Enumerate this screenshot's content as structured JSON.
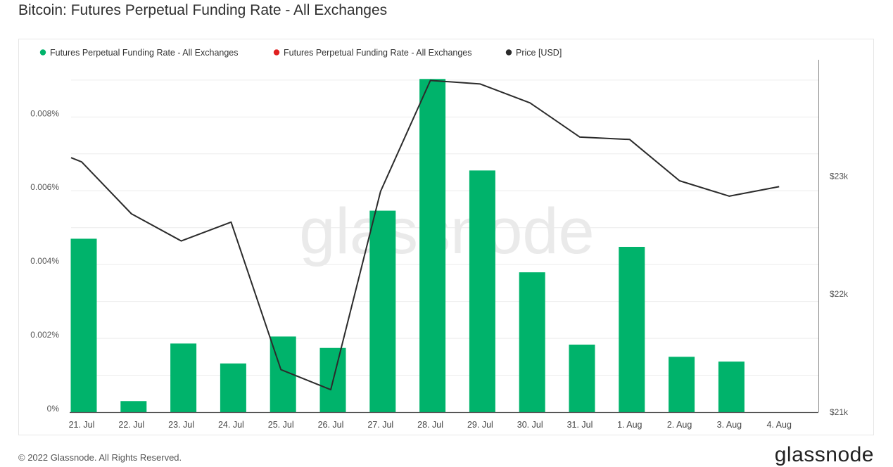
{
  "page": {
    "title": "Bitcoin: Futures Perpetual Funding Rate - All Exchanges",
    "copyright": "© 2022 Glassnode. All Rights Reserved.",
    "logo_text": "glassnode",
    "watermark": "glassnode"
  },
  "chart_data": {
    "type": "bar",
    "title": "Bitcoin: Futures Perpetual Funding Rate - All Exchanges",
    "categories": [
      "21. Jul",
      "22. Jul",
      "23. Jul",
      "24. Jul",
      "25. Jul",
      "26. Jul",
      "27. Jul",
      "28. Jul",
      "29. Jul",
      "30. Jul",
      "31. Jul",
      "1. Aug",
      "2. Aug",
      "3. Aug",
      "4. Aug"
    ],
    "series": [
      {
        "name": "Futures Perpetual Funding Rate - All Exchanges",
        "type": "bar",
        "axis": "left",
        "color": "#00b36b",
        "values": [
          0.0047,
          0.0003,
          0.00186,
          0.00132,
          0.00205,
          0.00174,
          0.00546,
          0.00903,
          0.00655,
          0.00379,
          0.00183,
          0.00448,
          0.0015,
          0.00137,
          null
        ]
      },
      {
        "name": "Futures Perpetual Funding Rate - All Exchanges",
        "type": "bar",
        "axis": "left",
        "color": "#e02020",
        "values": [
          null,
          null,
          null,
          null,
          null,
          null,
          null,
          null,
          null,
          null,
          null,
          null,
          null,
          null,
          null
        ]
      },
      {
        "name": "Price [USD]",
        "type": "line",
        "axis": "right",
        "color": "#2b2b2b",
        "values": [
          23120,
          22680,
          22450,
          22610,
          21360,
          21190,
          22870,
          23810,
          23780,
          23620,
          23330,
          23310,
          22960,
          22830,
          22910
        ]
      }
    ],
    "y_left": {
      "ticks": [
        0,
        0.002,
        0.004,
        0.006,
        0.008
      ],
      "tick_labels": [
        "0%",
        "0.002%",
        "0.004%",
        "0.006%",
        "0.008%"
      ],
      "range": [
        0,
        0.00955
      ]
    },
    "y_right": {
      "ticks": [
        21000,
        22000,
        23000
      ],
      "tick_labels": [
        "$21k",
        "$22k",
        "$23k"
      ],
      "range": [
        21000,
        23985
      ]
    },
    "grid": true,
    "legend_position": "top-left"
  }
}
